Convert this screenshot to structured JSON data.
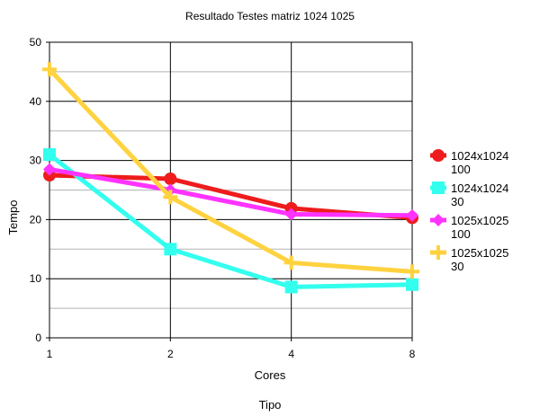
{
  "chart_data": {
    "type": "line",
    "title": "Resultado Testes matriz 1024 1025",
    "xlabel": "Cores",
    "ylabel": "Tempo",
    "footer_label": "Tipo",
    "categories": [
      "1",
      "2",
      "4",
      "8"
    ],
    "ylim": [
      0,
      50
    ],
    "yticks": [
      0,
      10,
      20,
      30,
      40,
      50
    ],
    "grid": true,
    "legend_position": "right",
    "series": [
      {
        "name_line1": "1024x1024",
        "name_line2": "100",
        "color": "#ee1c1c",
        "marker": "circle",
        "values": [
          27.5,
          26.9,
          21.9,
          20.3
        ]
      },
      {
        "name_line1": "1024x1024",
        "name_line2": "30",
        "color": "#33ffee",
        "marker": "square",
        "values": [
          31.0,
          15.0,
          8.6,
          9.0
        ]
      },
      {
        "name_line1": "1025x1025",
        "name_line2": "100",
        "color": "#ff33ff",
        "marker": "diamond",
        "values": [
          28.5,
          25.0,
          20.9,
          20.7
        ]
      },
      {
        "name_line1": "1025x1025",
        "name_line2": "30",
        "color": "#ffd23f",
        "marker": "plus",
        "values": [
          45.4,
          23.8,
          12.7,
          11.2
        ]
      }
    ]
  }
}
